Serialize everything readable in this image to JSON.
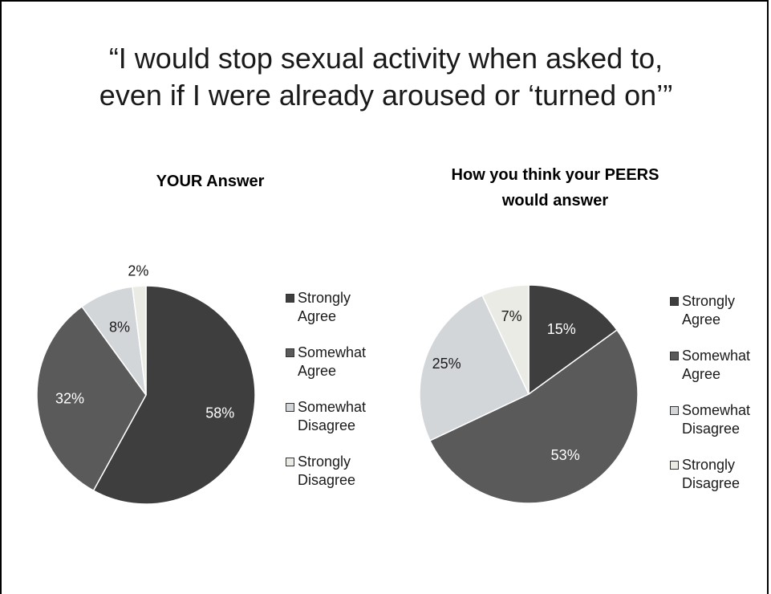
{
  "slide": {
    "title_line1": "“I would stop sexual activity when asked to,",
    "title_line2": "even if I were already aroused or ‘turned on’”"
  },
  "chart_data": [
    {
      "type": "pie",
      "title": "YOUR Answer",
      "categories": [
        "Strongly Agree",
        "Somewhat Agree",
        "Somewhat Disagree",
        "Strongly Disagree"
      ],
      "values": [
        58,
        32,
        8,
        2
      ],
      "data_labels": [
        "58%",
        "32%",
        "8%",
        "2%"
      ],
      "legend_position": "right",
      "colors": [
        "#3e3e3e",
        "#5a5a5a",
        "#d3d6d9",
        "#ebebe6"
      ]
    },
    {
      "type": "pie",
      "title": "How you think your PEERS would answer",
      "categories": [
        "Strongly Agree",
        "Somewhat Agree",
        "Somewhat Disagree",
        "Strongly Disagree"
      ],
      "values": [
        15,
        53,
        25,
        7
      ],
      "data_labels": [
        "15%",
        "53%",
        "25%",
        "7%"
      ],
      "legend_position": "right",
      "colors": [
        "#3e3e3e",
        "#5a5a5a",
        "#d3d6d9",
        "#ebebe6"
      ]
    }
  ],
  "legend": {
    "items": [
      {
        "label": "Strongly\nAgree"
      },
      {
        "label": "Somewhat\nAgree"
      },
      {
        "label": "Somewhat\nDisagree"
      },
      {
        "label": "Strongly\nDisagree"
      }
    ]
  }
}
